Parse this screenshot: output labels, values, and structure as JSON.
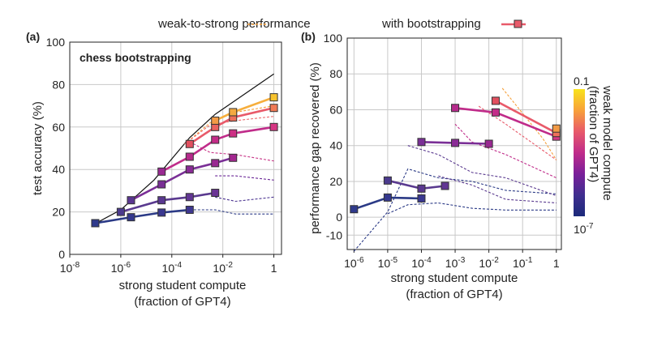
{
  "legend": {
    "left": "weak-to-strong performance",
    "right": "with bootstrapping"
  },
  "colorbar": {
    "title_lines": [
      "weak model compute",
      "(fraction of GPT4)"
    ],
    "top_label": "0.1",
    "bottom_label": "10",
    "bottom_label_exp": "-7",
    "colors": [
      "#f8e31b",
      "#f8a13a",
      "#e85a6a",
      "#c02c8a",
      "#7a1f9a",
      "#3f2e8f",
      "#1b2a7a"
    ]
  },
  "chart_data": [
    {
      "type": "line",
      "panel_label": "(a)",
      "title": "chess bootstrapping",
      "xlabel_lines": [
        "strong student compute",
        "(fraction of GPT4)"
      ],
      "ylabel": "test accuracy (%)",
      "xscale": "log",
      "xlim_log10": [
        -8,
        0.3
      ],
      "ylim": [
        0,
        100
      ],
      "xticks": [
        {
          "base": "10",
          "exp": "-8",
          "log": -8
        },
        {
          "base": "10",
          "exp": "-6",
          "log": -6
        },
        {
          "base": "10",
          "exp": "-4",
          "log": -4
        },
        {
          "base": "10",
          "exp": "-2",
          "log": -2
        },
        {
          "base": "1",
          "exp": "",
          "log": 0
        }
      ],
      "yticks": [
        "0",
        "20",
        "40",
        "60",
        "80",
        "100"
      ],
      "ceiling": {
        "name": "strong ceiling",
        "x_log10": [
          -7,
          -6,
          -4.7,
          -3.3,
          -2.3,
          0
        ],
        "y": [
          14.5,
          21,
          35,
          55,
          66,
          85
        ]
      },
      "weak_to_strong": [
        {
          "x_log10": [
            -3.5,
            -2.5,
            -1.5,
            0
          ],
          "y": [
            52,
            62,
            67,
            70
          ],
          "color": "#f6a13c"
        },
        {
          "x_log10": [
            -3.5,
            -2.5,
            -1.5,
            0
          ],
          "y": [
            52,
            61,
            63,
            65
          ],
          "color": "#ec6a6e"
        },
        {
          "x_log10": [
            -3.3,
            -2.5,
            -1.5,
            0
          ],
          "y": [
            53,
            48,
            47,
            44
          ],
          "color": "#c83486"
        },
        {
          "x_log10": [
            -2.3,
            -1.5,
            0
          ],
          "y": [
            37,
            37,
            35
          ],
          "color": "#6a2696"
        },
        {
          "x_log10": [
            -2.3,
            -1.5,
            0
          ],
          "y": [
            27,
            25,
            27
          ],
          "color": "#4b3390"
        },
        {
          "x_log10": [
            -3.3,
            -2.3,
            -1.5,
            0
          ],
          "y": [
            21,
            21,
            19,
            19
          ],
          "color": "#2b3a86"
        }
      ],
      "series": [
        {
          "name": "chain-1",
          "x_log10": [
            -7,
            -5.6,
            -4.4,
            -3.3
          ],
          "y": [
            14.7,
            17.5,
            19.7,
            21
          ],
          "line_color": "#2b3a86",
          "markers": [
            "#2f3a8c",
            "#34388e",
            "#3a3890",
            "#3e3790"
          ]
        },
        {
          "name": "chain-2",
          "x_log10": [
            -6,
            -4.4,
            -3.3,
            -2.3
          ],
          "y": [
            20,
            25.5,
            27,
            29
          ],
          "line_color": "#5a3a8f",
          "markers": [
            "#4b3a8d",
            "#5a3890",
            "#623693",
            "#6b3496"
          ]
        },
        {
          "name": "chain-3",
          "x_log10": [
            -5.6,
            -4.4,
            -3.3,
            -2.3,
            -1.6
          ],
          "y": [
            25.5,
            33,
            40,
            43,
            45.5
          ],
          "line_color": "#7a2f96",
          "markers": [
            "#5b3691",
            "#7a2f96",
            "#8a2b96",
            "#9a2892",
            "#a3268f"
          ]
        },
        {
          "name": "chain-4",
          "x_log10": [
            -4.4,
            -3.3,
            -2.3,
            -1.6,
            0
          ],
          "y": [
            39,
            46,
            54,
            57,
            60
          ],
          "line_color": "#c02c8a",
          "markers": [
            "#9a2892",
            "#b62a8c",
            "#c42c88",
            "#cd2f85",
            "#d63683"
          ]
        },
        {
          "name": "chain-5",
          "x_log10": [
            -3.3,
            -2.3,
            -1.6,
            0
          ],
          "y": [
            52,
            60,
            64.5,
            69
          ],
          "line_color": "#e85a6a",
          "markers": [
            "#e2505f",
            "#e9625f",
            "#ee705a",
            "#f07a56"
          ]
        },
        {
          "name": "chain-6",
          "x_log10": [
            -2.3,
            -1.6,
            0
          ],
          "y": [
            63,
            67,
            74
          ],
          "line_color": "#f6ae3c",
          "markers": [
            "#f29a45",
            "#f4aa40",
            "#f7c32e"
          ]
        }
      ]
    },
    {
      "type": "line",
      "panel_label": "(b)",
      "xlabel_lines": [
        "strong student compute",
        "(fraction of GPT4)"
      ],
      "ylabel": "performance gap recovered (%)",
      "xscale": "log",
      "xlim_log10": [
        -6.2,
        0.15
      ],
      "ylim": [
        -18,
        100
      ],
      "xticks": [
        {
          "base": "10",
          "exp": "-6",
          "log": -6
        },
        {
          "base": "10",
          "exp": "-5",
          "log": -5
        },
        {
          "base": "10",
          "exp": "-4",
          "log": -4
        },
        {
          "base": "10",
          "exp": "-3",
          "log": -3
        },
        {
          "base": "10",
          "exp": "-2",
          "log": -2
        },
        {
          "base": "10",
          "exp": "-1",
          "log": -1
        },
        {
          "base": "1",
          "exp": "",
          "log": 0
        }
      ],
      "yticks": [
        "-10",
        "0",
        "20",
        "40",
        "60",
        "80",
        "100"
      ],
      "weak_to_strong": [
        {
          "x_log10": [
            -6,
            -5,
            -4.4,
            -3.5,
            -2.5,
            -1.5,
            0
          ],
          "y": [
            -19,
            3,
            27,
            22,
            20,
            15,
            13
          ],
          "color": "#2b3a86"
        },
        {
          "x_log10": [
            -5,
            -4.4,
            -3.5,
            -2.5,
            -1.5,
            0
          ],
          "y": [
            2,
            7,
            8,
            5,
            4,
            4
          ],
          "color": "#2b3a86"
        },
        {
          "x_log10": [
            -4.4,
            -3.5,
            -2.5,
            -1.5,
            0
          ],
          "y": [
            40,
            35,
            25,
            22,
            12
          ],
          "color": "#5a3a8f"
        },
        {
          "x_log10": [
            -3.5,
            -2.5,
            -1.5,
            0
          ],
          "y": [
            23,
            18,
            10,
            8
          ],
          "color": "#5a3a8f"
        },
        {
          "x_log10": [
            -3,
            -2.5,
            -1.5,
            0
          ],
          "y": [
            52,
            42,
            35,
            22
          ],
          "color": "#c02c8a"
        },
        {
          "x_log10": [
            -2.3,
            -1.5,
            0
          ],
          "y": [
            62,
            52,
            32
          ],
          "color": "#e85a6a"
        },
        {
          "x_log10": [
            -1.6,
            -1,
            -0.4,
            0
          ],
          "y": [
            72,
            58,
            44,
            32
          ],
          "color": "#f6a13c"
        }
      ],
      "series": [
        {
          "name": "chain-1",
          "x_log10": [
            -6,
            -5,
            -4
          ],
          "y": [
            4.5,
            11,
            10.5
          ],
          "line_color": "#2b3a86",
          "markers": [
            "#2f3a8c",
            "#34388e",
            "#3a3890"
          ]
        },
        {
          "name": "chain-2",
          "x_log10": [
            -5,
            -4,
            -3.3
          ],
          "y": [
            20.5,
            16,
            17.5
          ],
          "line_color": "#5a3a8f",
          "markers": [
            "#4b3a8d",
            "#5a3890",
            "#623693"
          ]
        },
        {
          "name": "chain-3",
          "x_log10": [
            -4,
            -3,
            -2
          ],
          "y": [
            42,
            41.5,
            41
          ],
          "line_color": "#7a2f96",
          "markers": [
            "#7a2f96",
            "#8a2b96",
            "#9a2892"
          ]
        },
        {
          "name": "chain-4",
          "x_log10": [
            -3,
            -1.8,
            0
          ],
          "y": [
            61,
            58.5,
            45
          ],
          "line_color": "#c02c8a",
          "markers": [
            "#b62a8c",
            "#c42c88",
            "#d63683"
          ]
        },
        {
          "name": "chain-5",
          "x_log10": [
            -1.8,
            0
          ],
          "y": [
            65,
            47
          ],
          "line_color": "#e85a6a",
          "markers": [
            "#e2505f",
            "#ee705a"
          ]
        },
        {
          "name": "chain-6",
          "x_log10": [
            0
          ],
          "y": [
            49.5
          ],
          "line_color": "#f6ae3c",
          "markers": [
            "#f29a45"
          ]
        }
      ]
    }
  ]
}
